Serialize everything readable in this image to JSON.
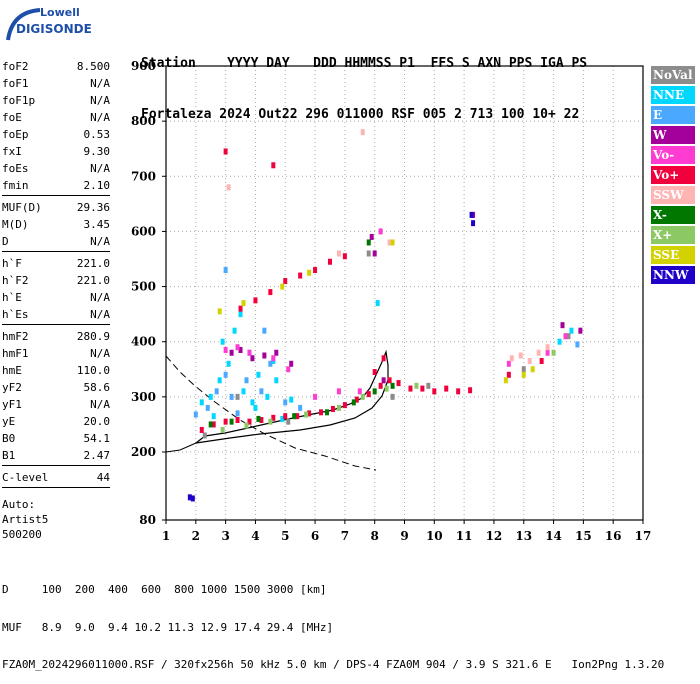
{
  "logo": {
    "line1": "Lowell",
    "line2": "DIGISONDE"
  },
  "header": {
    "line1": "Station    YYYY DAY   DDD HHMMSS P1  FFS S AXN PPS IGA PS",
    "line2": "Fortaleza 2024 Out22 296 011000 RSF 005 2 713 100 10+ 22"
  },
  "params": {
    "group1": [
      {
        "label": "foF2",
        "value": "8.500"
      },
      {
        "label": "foF1",
        "value": "N/A"
      },
      {
        "label": "foF1p",
        "value": "N/A"
      },
      {
        "label": "foE",
        "value": "N/A"
      },
      {
        "label": "foEp",
        "value": "0.53"
      },
      {
        "label": "fxI",
        "value": "9.30"
      },
      {
        "label": "foEs",
        "value": "N/A"
      },
      {
        "label": "fmin",
        "value": "2.10"
      }
    ],
    "group2": [
      {
        "label": "MUF(D)",
        "value": "29.36"
      },
      {
        "label": "M(D)",
        "value": "3.45"
      },
      {
        "label": "D",
        "value": "N/A"
      }
    ],
    "group3": [
      {
        "label": "h`F",
        "value": "221.0"
      },
      {
        "label": "h`F2",
        "value": "221.0"
      },
      {
        "label": "h`E",
        "value": "N/A"
      },
      {
        "label": "h`Es",
        "value": "N/A"
      }
    ],
    "group4": [
      {
        "label": "hmF2",
        "value": "280.9"
      },
      {
        "label": "hmF1",
        "value": "N/A"
      },
      {
        "label": "hmE",
        "value": "110.0"
      },
      {
        "label": "yF2",
        "value": "58.6"
      },
      {
        "label": "yF1",
        "value": "N/A"
      },
      {
        "label": "yE",
        "value": "20.0"
      },
      {
        "label": "B0",
        "value": "54.1"
      },
      {
        "label": "B1",
        "value": "2.47"
      }
    ],
    "group5": [
      {
        "label": "C-level",
        "value": "44"
      }
    ],
    "auto": [
      "Auto:",
      "Artist5",
      "500200"
    ]
  },
  "footer": {
    "line1": "D     100  200  400  600  800 1000 1500 3000 [km]",
    "line2": "MUF   8.9  9.0  9.4 10.2 11.3 12.9 17.4 29.4 [MHz]",
    "line3": "FZA0M_2024296011000.RSF / 320fx256h 50 kHz 5.0 km / DPS-4 FZA0M 904 / 3.9 S 321.6 E   Ion2Png 1.3.20"
  },
  "legend": [
    {
      "label": "NoVal",
      "color": "#8c8c8c"
    },
    {
      "label": "NNE",
      "color": "#00d7ff"
    },
    {
      "label": "E",
      "color": "#4aa8ff"
    },
    {
      "label": "W",
      "color": "#a4009a"
    },
    {
      "label": "Vo-",
      "color": "#ff3cd2"
    },
    {
      "label": "Vo+",
      "color": "#f0003c"
    },
    {
      "label": "SSW",
      "color": "#ffb4b4"
    },
    {
      "label": "X-",
      "color": "#007800"
    },
    {
      "label": "X+",
      "color": "#8cc864"
    },
    {
      "label": "SSE",
      "color": "#d2d200"
    },
    {
      "label": "NNW",
      "color": "#1e00c8"
    }
  ],
  "chart_data": {
    "type": "scatter",
    "xlabel": "",
    "ylabel": "",
    "xlim": [
      1,
      17
    ],
    "ylim": [
      80,
      900
    ],
    "xticks": [
      1,
      2,
      3,
      4,
      5,
      6,
      7,
      8,
      9,
      10,
      11,
      12,
      13,
      14,
      15,
      16,
      17
    ],
    "yticks": [
      80,
      200,
      300,
      400,
      500,
      600,
      700,
      800,
      900
    ],
    "grid": true,
    "legend_position": "right",
    "series": [
      {
        "name": "NoVal",
        "color": "#8c8c8c",
        "points": [
          [
            2.3,
            230
          ],
          [
            3.4,
            300
          ],
          [
            5.1,
            255
          ],
          [
            7.8,
            560
          ],
          [
            8.6,
            300
          ],
          [
            14.5,
            410
          ],
          [
            13.0,
            350
          ],
          [
            9.8,
            320
          ]
        ]
      },
      {
        "name": "NNE",
        "color": "#00d7ff",
        "points": [
          [
            2.5,
            300
          ],
          [
            2.8,
            330
          ],
          [
            3.1,
            360
          ],
          [
            3.3,
            420
          ],
          [
            3.6,
            310
          ],
          [
            3.8,
            380
          ],
          [
            4.1,
            340
          ],
          [
            4.4,
            300
          ],
          [
            4.7,
            330
          ],
          [
            2.2,
            290
          ],
          [
            2.9,
            400
          ],
          [
            3.5,
            450
          ],
          [
            4.0,
            280
          ],
          [
            4.9,
            260
          ],
          [
            2.6,
            265
          ],
          [
            3.9,
            290
          ],
          [
            14.6,
            420
          ],
          [
            14.2,
            400
          ],
          [
            8.1,
            470
          ],
          [
            5.2,
            295
          ],
          [
            4.6,
            365
          ]
        ]
      },
      {
        "name": "E",
        "color": "#4aa8ff",
        "points": [
          [
            2.4,
            280
          ],
          [
            2.7,
            310
          ],
          [
            3.0,
            340
          ],
          [
            3.2,
            300
          ],
          [
            3.7,
            330
          ],
          [
            4.2,
            310
          ],
          [
            4.5,
            360
          ],
          [
            5.0,
            290
          ],
          [
            5.5,
            280
          ],
          [
            3.4,
            270
          ],
          [
            2.0,
            268
          ],
          [
            4.3,
            420
          ],
          [
            14.8,
            395
          ],
          [
            3.0,
            530
          ]
        ]
      },
      {
        "name": "W",
        "color": "#a4009a",
        "points": [
          [
            3.2,
            380
          ],
          [
            3.5,
            385
          ],
          [
            3.9,
            370
          ],
          [
            4.3,
            375
          ],
          [
            4.7,
            380
          ],
          [
            5.2,
            360
          ],
          [
            8.3,
            330
          ],
          [
            8.0,
            560
          ],
          [
            14.3,
            430
          ],
          [
            14.9,
            420
          ],
          [
            11.3,
            630
          ],
          [
            7.9,
            590
          ]
        ]
      },
      {
        "name": "Vo-",
        "color": "#ff3cd2",
        "points": [
          [
            3.0,
            385
          ],
          [
            3.4,
            390
          ],
          [
            3.8,
            380
          ],
          [
            4.6,
            370
          ],
          [
            5.1,
            350
          ],
          [
            6.0,
            300
          ],
          [
            6.8,
            310
          ],
          [
            7.5,
            310
          ],
          [
            13.8,
            380
          ],
          [
            14.4,
            410
          ],
          [
            12.5,
            360
          ],
          [
            8.2,
            600
          ]
        ]
      },
      {
        "name": "Vo+",
        "color": "#f0003c",
        "points": [
          [
            2.2,
            240
          ],
          [
            2.6,
            250
          ],
          [
            3.0,
            255
          ],
          [
            3.4,
            258
          ],
          [
            3.8,
            255
          ],
          [
            4.2,
            258
          ],
          [
            4.6,
            262
          ],
          [
            5.0,
            265
          ],
          [
            5.4,
            265
          ],
          [
            5.8,
            270
          ],
          [
            6.2,
            272
          ],
          [
            6.6,
            278
          ],
          [
            7.0,
            285
          ],
          [
            7.4,
            295
          ],
          [
            7.8,
            305
          ],
          [
            8.2,
            320
          ],
          [
            8.5,
            330
          ],
          [
            8.8,
            325
          ],
          [
            9.2,
            315
          ],
          [
            9.6,
            315
          ],
          [
            10.0,
            310
          ],
          [
            10.4,
            315
          ],
          [
            10.8,
            310
          ],
          [
            11.2,
            312
          ],
          [
            8.3,
            370
          ],
          [
            8.0,
            345
          ],
          [
            3.0,
            745
          ],
          [
            4.6,
            720
          ],
          [
            3.5,
            460
          ],
          [
            4.0,
            475
          ],
          [
            4.5,
            490
          ],
          [
            5.0,
            510
          ],
          [
            5.5,
            520
          ],
          [
            6.0,
            530
          ],
          [
            6.5,
            545
          ],
          [
            7.0,
            555
          ],
          [
            12.5,
            340
          ],
          [
            13.6,
            365
          ]
        ]
      },
      {
        "name": "SSW",
        "color": "#ffb4b4",
        "points": [
          [
            12.6,
            370
          ],
          [
            12.9,
            375
          ],
          [
            13.2,
            365
          ],
          [
            13.5,
            380
          ],
          [
            13.8,
            390
          ],
          [
            8.5,
            580
          ],
          [
            6.8,
            560
          ],
          [
            7.6,
            780
          ],
          [
            3.1,
            680
          ]
        ]
      },
      {
        "name": "X-",
        "color": "#007800",
        "points": [
          [
            2.5,
            250
          ],
          [
            3.2,
            255
          ],
          [
            4.1,
            260
          ],
          [
            5.3,
            265
          ],
          [
            6.4,
            272
          ],
          [
            7.3,
            290
          ],
          [
            8.0,
            310
          ],
          [
            8.6,
            320
          ],
          [
            7.8,
            580
          ]
        ]
      },
      {
        "name": "X+",
        "color": "#8cc864",
        "points": [
          [
            2.9,
            240
          ],
          [
            3.7,
            248
          ],
          [
            4.5,
            255
          ],
          [
            5.7,
            268
          ],
          [
            6.8,
            280
          ],
          [
            7.6,
            300
          ],
          [
            8.4,
            315
          ],
          [
            9.4,
            320
          ],
          [
            14.0,
            380
          ]
        ]
      },
      {
        "name": "SSE",
        "color": "#d2d200",
        "points": [
          [
            3.6,
            470
          ],
          [
            4.9,
            500
          ],
          [
            5.8,
            525
          ],
          [
            12.4,
            330
          ],
          [
            13.0,
            340
          ],
          [
            13.3,
            350
          ],
          [
            8.6,
            580
          ],
          [
            2.8,
            455
          ]
        ]
      },
      {
        "name": "NNW",
        "color": "#1e00c8",
        "points": [
          [
            11.25,
            630
          ],
          [
            11.3,
            615
          ],
          [
            1.8,
            120
          ],
          [
            1.9,
            118
          ]
        ]
      }
    ]
  }
}
